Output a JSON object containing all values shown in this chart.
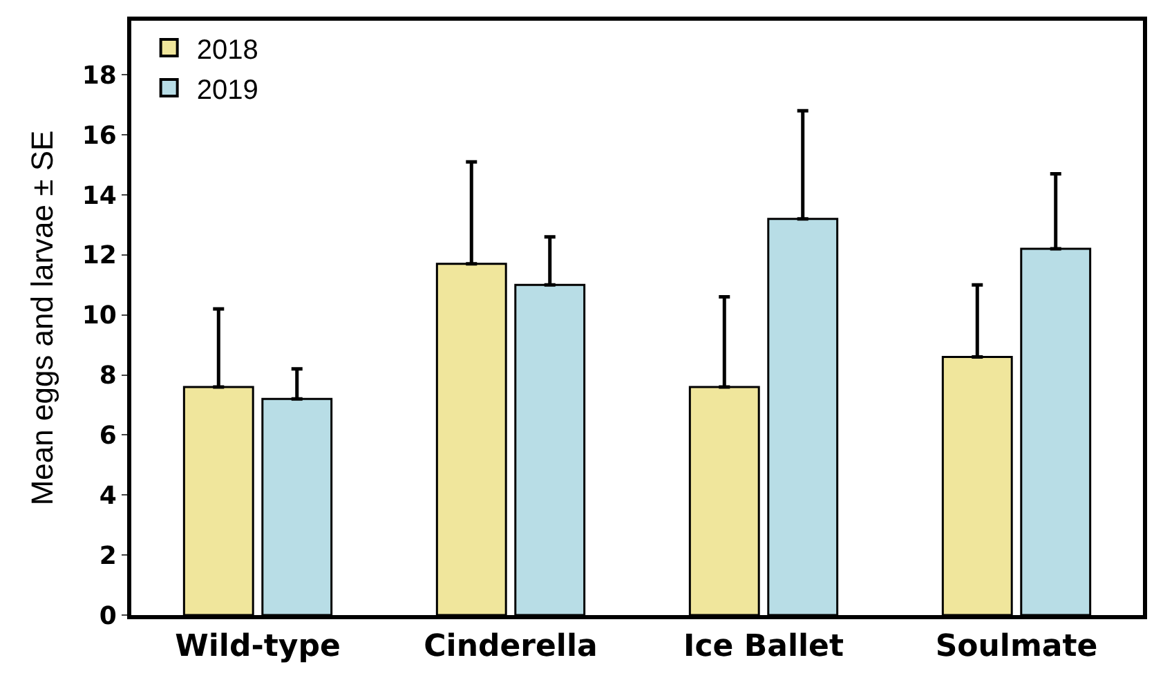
{
  "chart_data": {
    "type": "bar",
    "ylabel": "Mean eggs and larvae ± SE",
    "categories": [
      "Wild-type",
      "Cinderella",
      "Ice Ballet",
      "Soulmate"
    ],
    "series": [
      {
        "name": "2018",
        "color": "#f0e69c",
        "values": [
          7.6,
          11.7,
          7.6,
          8.6
        ],
        "errors": [
          [
            7.6,
            10.2
          ],
          [
            11.7,
            15.1
          ],
          [
            7.6,
            10.6
          ],
          [
            8.6,
            11.0
          ]
        ]
      },
      {
        "name": "2019",
        "color": "#b8dde6",
        "values": [
          7.2,
          11.0,
          13.2,
          12.2
        ],
        "errors": [
          [
            7.2,
            8.2
          ],
          [
            11.0,
            12.6
          ],
          [
            13.2,
            16.8
          ],
          [
            12.2,
            14.7
          ]
        ]
      }
    ],
    "ylim": [
      0,
      19.8
    ],
    "yticks": [
      0,
      2,
      4,
      6,
      8,
      10,
      12,
      14,
      16,
      18
    ],
    "legend": "top left"
  }
}
